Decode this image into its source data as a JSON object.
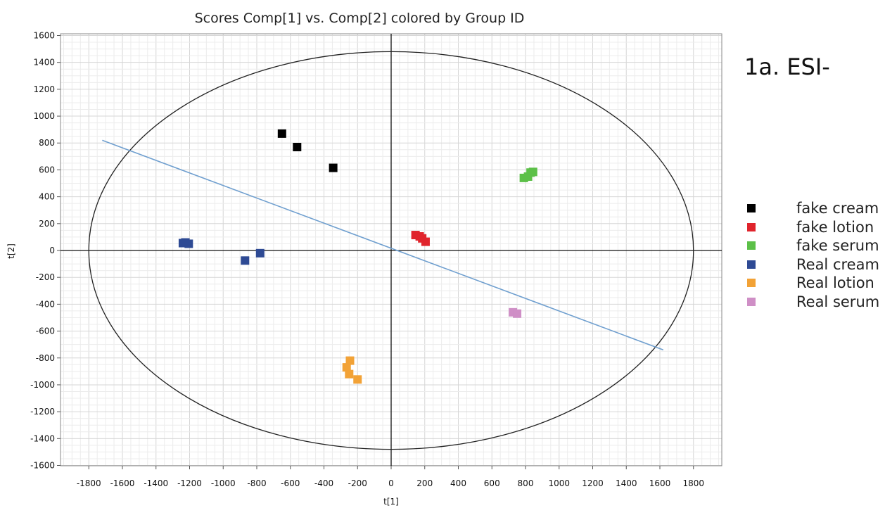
{
  "annotation": "1a. ESI-",
  "chart_data": {
    "type": "scatter",
    "title": "Scores Comp[1] vs. Comp[2] colored by Group ID",
    "xlabel": "t[1]",
    "ylabel": "t[2]",
    "xlim": [
      -2000,
      2000
    ],
    "ylim": [
      -1650,
      1650
    ],
    "xticks": [
      -1800,
      -1600,
      -1400,
      -1200,
      -1000,
      -800,
      -600,
      -400,
      -200,
      0,
      200,
      400,
      600,
      800,
      1000,
      1200,
      1400,
      1600,
      1800
    ],
    "yticks": [
      -1600,
      -1400,
      -1200,
      -1000,
      -800,
      -600,
      -400,
      -200,
      0,
      200,
      400,
      600,
      800,
      1000,
      1200,
      1400,
      1600
    ],
    "grid": true,
    "legend_position": "right",
    "ellipse": {
      "center": [
        0,
        0
      ],
      "rx": 1800,
      "ry": 1480
    },
    "line": {
      "x": [
        -1720,
        1620
      ],
      "y": [
        820,
        -740
      ],
      "color": "#6f9fcf"
    },
    "series": [
      {
        "name": "fake cream",
        "color": "#000000",
        "points": [
          [
            -650,
            870
          ],
          [
            -560,
            770
          ],
          [
            -345,
            615
          ]
        ]
      },
      {
        "name": "fake lotion",
        "color": "#e0242c",
        "points": [
          [
            145,
            115
          ],
          [
            170,
            105
          ],
          [
            185,
            90
          ],
          [
            205,
            65
          ]
        ]
      },
      {
        "name": "fake serum",
        "color": "#5cc048",
        "points": [
          [
            790,
            540
          ],
          [
            815,
            550
          ],
          [
            830,
            580
          ],
          [
            845,
            585
          ]
        ]
      },
      {
        "name": "Real cream",
        "color": "#2e4a94",
        "points": [
          [
            -1240,
            55
          ],
          [
            -1225,
            60
          ],
          [
            -1205,
            50
          ],
          [
            -870,
            -75
          ],
          [
            -780,
            -20
          ]
        ]
      },
      {
        "name": "Real lotion",
        "color": "#f2a236",
        "points": [
          [
            -245,
            -820
          ],
          [
            -265,
            -870
          ],
          [
            -250,
            -920
          ],
          [
            -200,
            -960
          ]
        ]
      },
      {
        "name": "Real serum",
        "color": "#cf8fc6",
        "points": [
          [
            725,
            -460
          ],
          [
            750,
            -470
          ]
        ]
      }
    ]
  }
}
